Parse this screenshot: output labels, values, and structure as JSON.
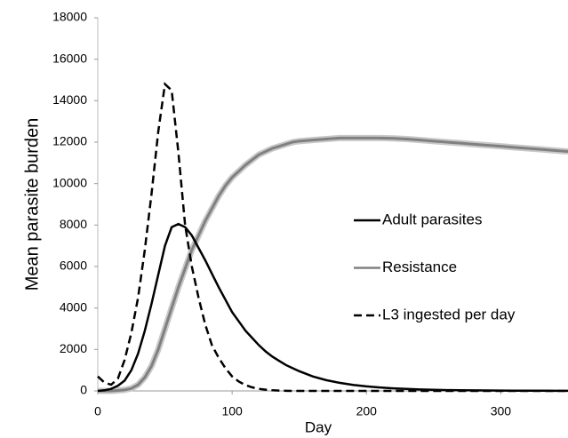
{
  "chart_data": {
    "type": "line",
    "x_label": "Day",
    "y_label": "Mean parasite burden",
    "x": [
      0,
      5,
      10,
      15,
      20,
      25,
      30,
      35,
      40,
      45,
      50,
      55,
      60,
      65,
      70,
      75,
      80,
      85,
      90,
      95,
      100,
      105,
      110,
      115,
      120,
      125,
      130,
      135,
      140,
      145,
      150,
      160,
      170,
      180,
      190,
      200,
      210,
      220,
      230,
      240,
      250,
      260,
      270,
      280,
      290,
      300,
      310,
      320,
      330,
      340,
      350
    ],
    "series": [
      {
        "name": "Adult parasites",
        "color": "#000000",
        "dashed": false,
        "values": [
          0,
          30,
          100,
          250,
          500,
          1000,
          1800,
          2900,
          4200,
          5600,
          7000,
          7900,
          8050,
          7900,
          7500,
          6900,
          6300,
          5650,
          5000,
          4400,
          3800,
          3350,
          2900,
          2550,
          2200,
          1900,
          1650,
          1450,
          1250,
          1100,
          950,
          700,
          520,
          390,
          290,
          220,
          165,
          125,
          95,
          70,
          55,
          40,
          30,
          25,
          20,
          15,
          12,
          10,
          8,
          6,
          5
        ]
      },
      {
        "name": "Resistance",
        "color": "#808080",
        "dashed": false,
        "values": [
          0,
          0,
          0,
          20,
          50,
          120,
          300,
          650,
          1200,
          2000,
          3000,
          4000,
          5000,
          5900,
          6800,
          7500,
          8200,
          8800,
          9400,
          9900,
          10300,
          10600,
          10900,
          11150,
          11400,
          11550,
          11700,
          11800,
          11900,
          12000,
          12050,
          12100,
          12150,
          12200,
          12200,
          12200,
          12200,
          12180,
          12150,
          12100,
          12050,
          12000,
          11950,
          11900,
          11850,
          11800,
          11750,
          11700,
          11650,
          11600,
          11550
        ]
      },
      {
        "name": "L3 ingested per day",
        "color": "#000000",
        "dashed": true,
        "values": [
          700,
          400,
          300,
          600,
          1500,
          2800,
          4500,
          6800,
          9500,
          12500,
          14800,
          14500,
          11500,
          8000,
          6000,
          4500,
          3200,
          2200,
          1600,
          1100,
          700,
          450,
          280,
          170,
          100,
          60,
          30,
          15,
          5,
          0,
          0,
          0,
          0,
          0,
          0,
          0,
          0,
          0,
          0,
          0,
          0,
          0,
          0,
          0,
          0,
          0,
          0,
          0,
          0,
          0,
          0
        ]
      }
    ],
    "xlim": [
      0,
      350
    ],
    "xticks": [
      0,
      100,
      200,
      300
    ],
    "ylim": [
      0,
      18000
    ],
    "yticks": [
      0,
      2000,
      4000,
      6000,
      8000,
      10000,
      12000,
      14000,
      16000,
      18000
    ],
    "grid": false,
    "legend": "right"
  }
}
